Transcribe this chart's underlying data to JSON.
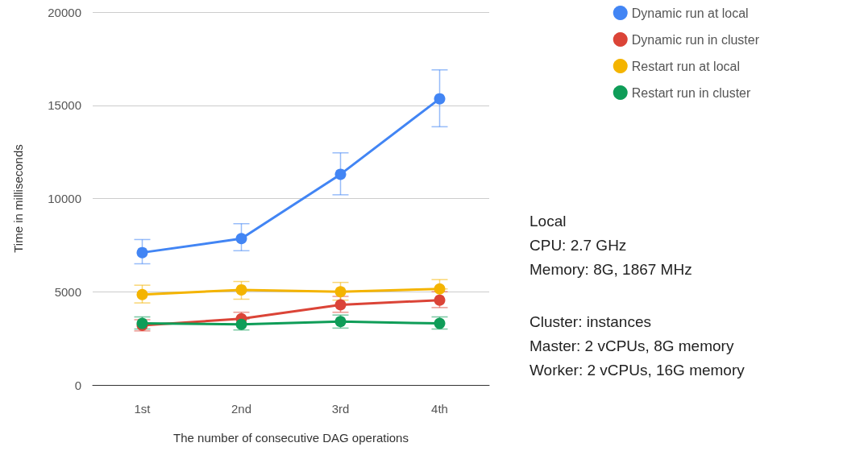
{
  "chart_data": {
    "type": "line",
    "xlabel": "The number of consecutive DAG operations",
    "ylabel": "Time in milliseconds",
    "categories": [
      "1st",
      "2nd",
      "3rd",
      "4th"
    ],
    "series": [
      {
        "name": "Dynamic run at local",
        "color": "#4285f4",
        "values": [
          7100,
          7850,
          11300,
          15350
        ],
        "errors": [
          [
            6500,
            7800
          ],
          [
            7200,
            8650
          ],
          [
            10200,
            12450
          ],
          [
            13850,
            16900
          ]
        ]
      },
      {
        "name": "Dynamic run in cluster",
        "color": "#db4437",
        "values": [
          3200,
          3550,
          4300,
          4550
        ],
        "errors": [
          [
            2900,
            3500
          ],
          [
            3550,
            3900
          ],
          [
            3900,
            4750
          ],
          [
            4150,
            5000
          ]
        ]
      },
      {
        "name": "Restart run at local",
        "color": "#f4b400",
        "values": [
          4850,
          5100,
          5000,
          5150
        ],
        "errors": [
          [
            4400,
            5350
          ],
          [
            4600,
            5550
          ],
          [
            4550,
            5500
          ],
          [
            5150,
            5650
          ]
        ]
      },
      {
        "name": "Restart run in cluster",
        "color": "#0f9d58",
        "values": [
          3300,
          3250,
          3400,
          3300
        ],
        "errors": [
          [
            3000,
            3650
          ],
          [
            2950,
            3550
          ],
          [
            3050,
            3750
          ],
          [
            3000,
            3650
          ]
        ]
      }
    ],
    "ylim": [
      0,
      20000
    ],
    "yticks": [
      0,
      5000,
      10000,
      15000,
      20000
    ],
    "grid": "y",
    "legend": "top right",
    "marker": "circle",
    "annotations": [
      "Local",
      "CPU: 2.7 GHz",
      "Memory: 8G, 1867 MHz",
      "Cluster: instances",
      "Master: 2 vCPUs, 8G memory",
      "Worker: 2 vCPUs, 16G memory"
    ]
  }
}
